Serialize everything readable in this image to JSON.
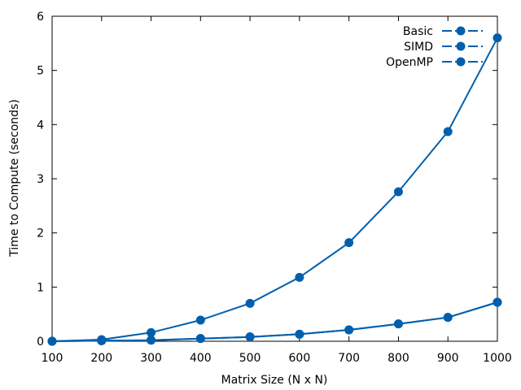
{
  "chart_data": {
    "type": "line",
    "xlabel": "Matrix Size (N x N)",
    "ylabel": "Time to Compute (seconds)",
    "xlim": [
      100,
      1000
    ],
    "ylim": [
      0,
      6
    ],
    "x_ticks": [
      "100",
      "200",
      "300",
      "400",
      "500",
      "600",
      "700",
      "800",
      "900",
      "1000"
    ],
    "y_ticks": [
      "0",
      "1",
      "2",
      "3",
      "4",
      "5",
      "6"
    ],
    "grid": false,
    "legend_position": "top-right",
    "line_color": "#005fad",
    "x": [
      100,
      200,
      300,
      400,
      500,
      600,
      700,
      800,
      900,
      1000
    ],
    "series": [
      {
        "name": "Basic",
        "values": [
          0.0,
          0.03,
          0.16,
          0.39,
          0.7,
          1.18,
          1.82,
          2.76,
          3.87,
          5.6
        ]
      },
      {
        "name": "SIMD",
        "values": [
          0.0,
          0.01,
          0.02,
          0.05,
          0.08,
          0.13,
          0.21,
          0.32,
          0.44,
          0.72
        ]
      },
      {
        "name": "OpenMP",
        "values": [
          0.0,
          0.01,
          0.02,
          0.05,
          0.08,
          0.13,
          0.21,
          0.32,
          0.44,
          0.72
        ]
      }
    ]
  }
}
